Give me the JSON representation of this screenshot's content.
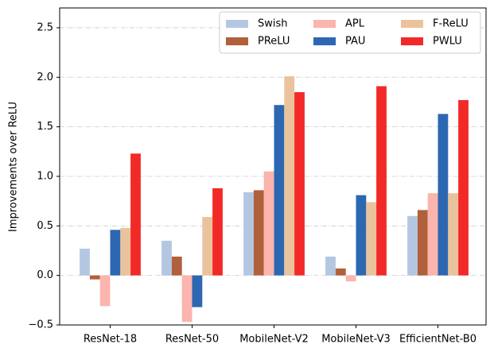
{
  "chart_data": {
    "type": "bar",
    "ylabel": "Improvements over ReLU",
    "categories": [
      "ResNet-18",
      "ResNet-50",
      "MobileNet-V2",
      "MobileNet-V3",
      "EfficientNet-B0"
    ],
    "series": [
      {
        "name": "Swish",
        "color": "#b4c7e2",
        "values": [
          0.27,
          0.35,
          0.84,
          0.19,
          0.6
        ]
      },
      {
        "name": "PReLU",
        "color": "#b0603a",
        "values": [
          -0.04,
          0.19,
          0.86,
          0.07,
          0.66
        ]
      },
      {
        "name": "APL",
        "color": "#fbb4ae",
        "values": [
          -0.31,
          -0.47,
          1.05,
          -0.06,
          0.83
        ]
      },
      {
        "name": "PAU",
        "color": "#2d67b1",
        "values": [
          0.46,
          -0.32,
          1.72,
          0.81,
          1.63
        ]
      },
      {
        "name": "F-ReLU",
        "color": "#eac39c",
        "values": [
          0.48,
          0.59,
          2.01,
          0.74,
          0.83
        ]
      },
      {
        "name": "PWLU",
        "color": "#f22a27",
        "values": [
          1.23,
          0.88,
          1.85,
          1.91,
          1.77
        ]
      }
    ],
    "ylim": [
      -0.5,
      2.7
    ],
    "yticks": [
      {
        "value": -0.5,
        "label": "−0.5"
      },
      {
        "value": 0,
        "label": "0.0"
      },
      0.5,
      {
        "value": 1,
        "label": "1.0"
      },
      1.5,
      {
        "value": 2,
        "label": "2.0"
      },
      2.5
    ],
    "grid": true,
    "legend": "upper right",
    "legend_columns": 3
  }
}
